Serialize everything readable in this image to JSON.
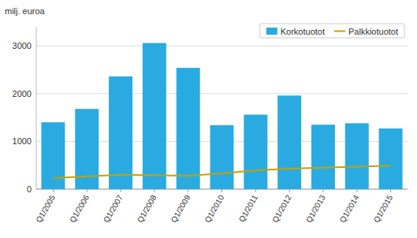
{
  "chart_data": {
    "type": "bar",
    "ylabel": "milj. euroa",
    "categories": [
      "Q1/2005",
      "Q1/2006",
      "Q1/2007",
      "Q1/2008",
      "Q1/2009",
      "Q1/2010",
      "Q1/2011",
      "Q1/2012",
      "Q1/2013",
      "Q1/2014",
      "Q1/2015"
    ],
    "series": [
      {
        "name": "Korkotuotot",
        "type": "bar",
        "color": "#29ABE2",
        "values": [
          1400,
          1680,
          2360,
          3060,
          2540,
          1340,
          1560,
          1960,
          1350,
          1380,
          1270
        ]
      },
      {
        "name": "Palkkiotuotot",
        "type": "line",
        "color": "#C8A000",
        "values": [
          230,
          270,
          300,
          290,
          280,
          330,
          390,
          430,
          450,
          470,
          490
        ]
      }
    ],
    "ylim": [
      0,
      3400
    ],
    "yticks": [
      0,
      1000,
      2000,
      3000
    ],
    "grid": true,
    "legend": "upper right"
  }
}
